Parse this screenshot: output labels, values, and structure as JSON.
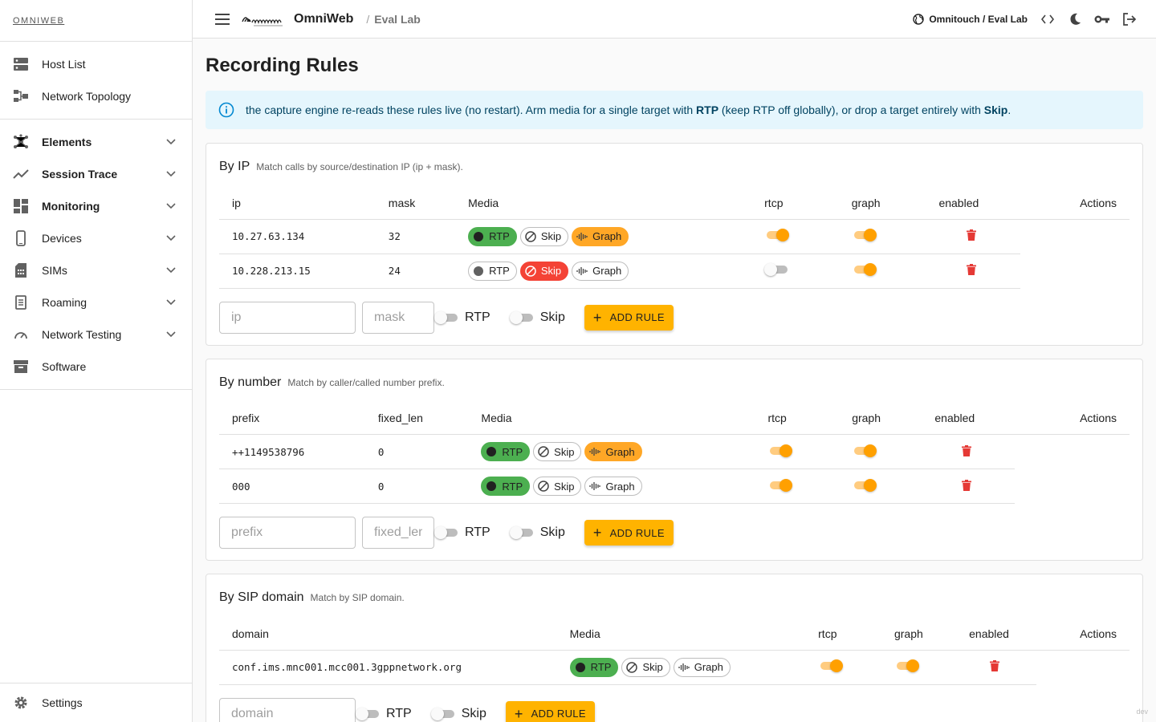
{
  "sidebar": {
    "brand": "OMNIWEB",
    "top_items": [
      {
        "label": "Host List",
        "icon": "server-icon"
      },
      {
        "label": "Network Topology",
        "icon": "topology-icon"
      }
    ],
    "groups": [
      {
        "label": "Elements",
        "icon": "hub-icon",
        "bold": true
      },
      {
        "label": "Session Trace",
        "icon": "trend-icon",
        "bold": true
      },
      {
        "label": "Monitoring",
        "icon": "dashboard-icon",
        "bold": true
      },
      {
        "label": "Devices",
        "icon": "phone-icon",
        "bold": false
      },
      {
        "label": "SIMs",
        "icon": "sim-icon",
        "bold": false
      },
      {
        "label": "Roaming",
        "icon": "document-icon",
        "bold": false
      },
      {
        "label": "Network Testing",
        "icon": "speed-icon",
        "bold": false
      },
      {
        "label": "Software",
        "icon": "archive-icon",
        "bold": false
      }
    ],
    "settings_label": "Settings"
  },
  "topbar": {
    "app_name": "OmniWeb",
    "breadcrumb_sep": "/",
    "breadcrumb": "Eval Lab",
    "tenant": "Omnitouch / Eval Lab"
  },
  "page": {
    "title": "Recording Rules",
    "info": {
      "part1": "the capture engine re-reads these rules live (no restart). Arm media for a single target with ",
      "rtp": "RTP",
      "part2": " (keep RTP off globally), or drop a target entirely with ",
      "skip": "Skip",
      "part3": "."
    }
  },
  "labels": {
    "rtp": "RTP",
    "skip": "Skip",
    "graph": "Graph",
    "add_rule": "ADD RULE"
  },
  "sections": {
    "ip": {
      "title": "By IP",
      "subtitle": "Match calls by source/destination IP (ip + mask).",
      "columns": [
        "ip",
        "mask",
        "Media",
        "rtcp",
        "graph",
        "enabled",
        "Actions"
      ],
      "rows": [
        {
          "col1": "10.27.63.134",
          "col2": "32",
          "rtp": true,
          "skip": false,
          "graph": true,
          "rtcp": true,
          "graph_on": true
        },
        {
          "col1": "10.228.213.15",
          "col2": "24",
          "rtp": false,
          "skip": true,
          "graph": false,
          "rtcp": false,
          "graph_on": true
        }
      ],
      "placeholder1": "ip",
      "placeholder2": "mask"
    },
    "number": {
      "title": "By number",
      "subtitle": "Match by caller/called number prefix.",
      "columns": [
        "prefix",
        "fixed_len",
        "Media",
        "rtcp",
        "graph",
        "enabled",
        "Actions"
      ],
      "rows": [
        {
          "col1": "++1149538796",
          "col2": "0",
          "rtp": true,
          "skip": false,
          "graph": true,
          "rtcp": true,
          "graph_on": true
        },
        {
          "col1": "000",
          "col2": "0",
          "rtp": true,
          "skip": false,
          "graph": false,
          "rtcp": true,
          "graph_on": true
        }
      ],
      "placeholder1": "prefix",
      "placeholder2": "fixed_len"
    },
    "domain": {
      "title": "By SIP domain",
      "subtitle": "Match by SIP domain.",
      "columns": [
        "domain",
        "Media",
        "rtcp",
        "graph",
        "enabled",
        "Actions"
      ],
      "rows": [
        {
          "col1": "conf.ims.mnc001.mcc001.3gppnetwork.org",
          "rtp": true,
          "skip": false,
          "graph": false,
          "rtcp": true,
          "graph_on": true
        }
      ],
      "placeholder1": "domain"
    }
  },
  "footer": {
    "dev": "dev"
  },
  "colors": {
    "accent": "#ffa000",
    "rtp_on": "#4caf50",
    "skip_on": "#f44336",
    "graph_on": "#ffa726",
    "delete": "#e53935",
    "info_bg": "#e5f6fd"
  }
}
